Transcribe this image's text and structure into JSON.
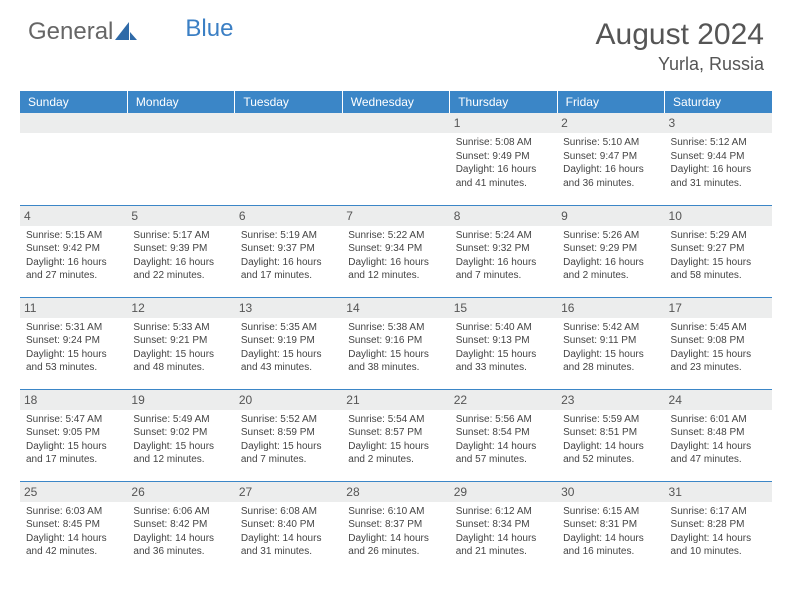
{
  "brand": {
    "part1": "General",
    "part2": "Blue"
  },
  "title": "August 2024",
  "location": "Yurla, Russia",
  "day_headers": [
    "Sunday",
    "Monday",
    "Tuesday",
    "Wednesday",
    "Thursday",
    "Friday",
    "Saturday"
  ],
  "colors": {
    "header_bg": "#3b86c7",
    "header_text": "#ffffff",
    "daynum_bg": "#eceded",
    "border": "#3b86c7",
    "text": "#444444"
  },
  "weeks": [
    [
      null,
      null,
      null,
      null,
      {
        "n": "1",
        "sr": "5:08 AM",
        "ss": "9:49 PM",
        "dl": "16 hours and 41 minutes."
      },
      {
        "n": "2",
        "sr": "5:10 AM",
        "ss": "9:47 PM",
        "dl": "16 hours and 36 minutes."
      },
      {
        "n": "3",
        "sr": "5:12 AM",
        "ss": "9:44 PM",
        "dl": "16 hours and 31 minutes."
      }
    ],
    [
      {
        "n": "4",
        "sr": "5:15 AM",
        "ss": "9:42 PM",
        "dl": "16 hours and 27 minutes."
      },
      {
        "n": "5",
        "sr": "5:17 AM",
        "ss": "9:39 PM",
        "dl": "16 hours and 22 minutes."
      },
      {
        "n": "6",
        "sr": "5:19 AM",
        "ss": "9:37 PM",
        "dl": "16 hours and 17 minutes."
      },
      {
        "n": "7",
        "sr": "5:22 AM",
        "ss": "9:34 PM",
        "dl": "16 hours and 12 minutes."
      },
      {
        "n": "8",
        "sr": "5:24 AM",
        "ss": "9:32 PM",
        "dl": "16 hours and 7 minutes."
      },
      {
        "n": "9",
        "sr": "5:26 AM",
        "ss": "9:29 PM",
        "dl": "16 hours and 2 minutes."
      },
      {
        "n": "10",
        "sr": "5:29 AM",
        "ss": "9:27 PM",
        "dl": "15 hours and 58 minutes."
      }
    ],
    [
      {
        "n": "11",
        "sr": "5:31 AM",
        "ss": "9:24 PM",
        "dl": "15 hours and 53 minutes."
      },
      {
        "n": "12",
        "sr": "5:33 AM",
        "ss": "9:21 PM",
        "dl": "15 hours and 48 minutes."
      },
      {
        "n": "13",
        "sr": "5:35 AM",
        "ss": "9:19 PM",
        "dl": "15 hours and 43 minutes."
      },
      {
        "n": "14",
        "sr": "5:38 AM",
        "ss": "9:16 PM",
        "dl": "15 hours and 38 minutes."
      },
      {
        "n": "15",
        "sr": "5:40 AM",
        "ss": "9:13 PM",
        "dl": "15 hours and 33 minutes."
      },
      {
        "n": "16",
        "sr": "5:42 AM",
        "ss": "9:11 PM",
        "dl": "15 hours and 28 minutes."
      },
      {
        "n": "17",
        "sr": "5:45 AM",
        "ss": "9:08 PM",
        "dl": "15 hours and 23 minutes."
      }
    ],
    [
      {
        "n": "18",
        "sr": "5:47 AM",
        "ss": "9:05 PM",
        "dl": "15 hours and 17 minutes."
      },
      {
        "n": "19",
        "sr": "5:49 AM",
        "ss": "9:02 PM",
        "dl": "15 hours and 12 minutes."
      },
      {
        "n": "20",
        "sr": "5:52 AM",
        "ss": "8:59 PM",
        "dl": "15 hours and 7 minutes."
      },
      {
        "n": "21",
        "sr": "5:54 AM",
        "ss": "8:57 PM",
        "dl": "15 hours and 2 minutes."
      },
      {
        "n": "22",
        "sr": "5:56 AM",
        "ss": "8:54 PM",
        "dl": "14 hours and 57 minutes."
      },
      {
        "n": "23",
        "sr": "5:59 AM",
        "ss": "8:51 PM",
        "dl": "14 hours and 52 minutes."
      },
      {
        "n": "24",
        "sr": "6:01 AM",
        "ss": "8:48 PM",
        "dl": "14 hours and 47 minutes."
      }
    ],
    [
      {
        "n": "25",
        "sr": "6:03 AM",
        "ss": "8:45 PM",
        "dl": "14 hours and 42 minutes."
      },
      {
        "n": "26",
        "sr": "6:06 AM",
        "ss": "8:42 PM",
        "dl": "14 hours and 36 minutes."
      },
      {
        "n": "27",
        "sr": "6:08 AM",
        "ss": "8:40 PM",
        "dl": "14 hours and 31 minutes."
      },
      {
        "n": "28",
        "sr": "6:10 AM",
        "ss": "8:37 PM",
        "dl": "14 hours and 26 minutes."
      },
      {
        "n": "29",
        "sr": "6:12 AM",
        "ss": "8:34 PM",
        "dl": "14 hours and 21 minutes."
      },
      {
        "n": "30",
        "sr": "6:15 AM",
        "ss": "8:31 PM",
        "dl": "14 hours and 16 minutes."
      },
      {
        "n": "31",
        "sr": "6:17 AM",
        "ss": "8:28 PM",
        "dl": "14 hours and 10 minutes."
      }
    ]
  ],
  "labels": {
    "sunrise": "Sunrise: ",
    "sunset": "Sunset: ",
    "daylight": "Daylight: "
  }
}
